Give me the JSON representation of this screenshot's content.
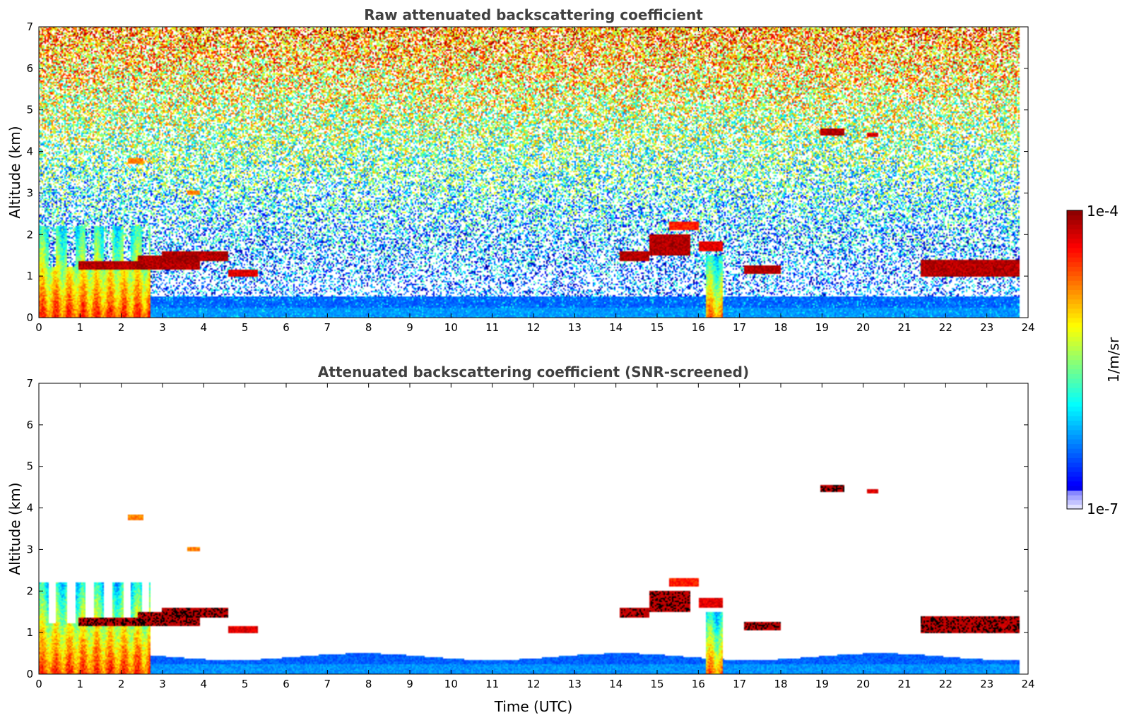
{
  "chart_data": [
    {
      "type": "heatmap",
      "title": "Raw attenuated backscattering coefficient",
      "xlabel": "",
      "ylabel": "Altitude (km)",
      "xlim": [
        0,
        24
      ],
      "ylim": [
        0,
        7
      ],
      "xticks": [
        "0",
        "1",
        "2",
        "3",
        "4",
        "5",
        "6",
        "7",
        "8",
        "9",
        "10",
        "11",
        "12",
        "13",
        "14",
        "15",
        "16",
        "17",
        "18",
        "19",
        "20",
        "21",
        "22",
        "23",
        "24"
      ],
      "yticks": [
        "0",
        "1",
        "2",
        "3",
        "4",
        "5",
        "6",
        "7"
      ],
      "noise": "high",
      "features": [
        {
          "kind": "aerosol-plume",
          "x": [
            0,
            2.7
          ],
          "y": [
            0,
            2.2
          ],
          "level": 0.8
        },
        {
          "kind": "cloud",
          "x": [
            0.95,
            2.6
          ],
          "y": [
            1.15,
            1.35
          ],
          "level": 0.95
        },
        {
          "kind": "cloud",
          "x": [
            2.4,
            3.9
          ],
          "y": [
            1.15,
            1.5
          ],
          "level": 0.95
        },
        {
          "kind": "cloud",
          "x": [
            3.0,
            4.6
          ],
          "y": [
            1.35,
            1.6
          ],
          "level": 0.95
        },
        {
          "kind": "cloud",
          "x": [
            4.6,
            5.3
          ],
          "y": [
            1.0,
            1.15
          ],
          "level": 0.9
        },
        {
          "kind": "cloud",
          "x": [
            2.15,
            2.55
          ],
          "y": [
            3.7,
            3.85
          ],
          "level": 0.75
        },
        {
          "kind": "cloud",
          "x": [
            3.6,
            3.9
          ],
          "y": [
            2.95,
            3.05
          ],
          "level": 0.75
        },
        {
          "kind": "cloud",
          "x": [
            14.1,
            14.8
          ],
          "y": [
            1.35,
            1.6
          ],
          "level": 0.95
        },
        {
          "kind": "cloud",
          "x": [
            14.8,
            15.8
          ],
          "y": [
            1.5,
            2.0
          ],
          "level": 0.95
        },
        {
          "kind": "cloud",
          "x": [
            15.3,
            16.0
          ],
          "y": [
            2.1,
            2.3
          ],
          "level": 0.85
        },
        {
          "kind": "cloud",
          "x": [
            16.0,
            16.6
          ],
          "y": [
            1.6,
            1.85
          ],
          "level": 0.9
        },
        {
          "kind": "cloud",
          "x": [
            17.1,
            18.0
          ],
          "y": [
            1.05,
            1.25
          ],
          "level": 0.95
        },
        {
          "kind": "cloud",
          "x": [
            18.95,
            19.55
          ],
          "y": [
            4.4,
            4.55
          ],
          "level": 0.95
        },
        {
          "kind": "cloud",
          "x": [
            20.1,
            20.35
          ],
          "y": [
            4.35,
            4.45
          ],
          "level": 0.9
        },
        {
          "kind": "cloud",
          "x": [
            21.4,
            23.8
          ],
          "y": [
            1.0,
            1.4
          ],
          "level": 0.95
        },
        {
          "kind": "plume",
          "x": [
            16.2,
            16.6
          ],
          "y": [
            0,
            1.5
          ],
          "level": 0.75
        },
        {
          "kind": "boundary-layer",
          "x": [
            2.7,
            23.8
          ],
          "y": [
            0,
            0.5
          ],
          "level": 0.25
        }
      ]
    },
    {
      "type": "heatmap",
      "title": "Attenuated backscattering coefficient (SNR-screened)",
      "xlabel": "Time (UTC)",
      "ylabel": "Altitude (km)",
      "xlim": [
        0,
        24
      ],
      "ylim": [
        0,
        7
      ],
      "xticks": [
        "0",
        "1",
        "2",
        "3",
        "4",
        "5",
        "6",
        "7",
        "8",
        "9",
        "10",
        "11",
        "12",
        "13",
        "14",
        "15",
        "16",
        "17",
        "18",
        "19",
        "20",
        "21",
        "22",
        "23",
        "24"
      ],
      "yticks": [
        "0",
        "1",
        "2",
        "3",
        "4",
        "5",
        "6",
        "7"
      ],
      "noise": "screened",
      "features": [
        {
          "kind": "aerosol-plume",
          "x": [
            0,
            2.7
          ],
          "y": [
            0,
            2.2
          ],
          "level": 0.8
        },
        {
          "kind": "cloud",
          "x": [
            0.95,
            2.6
          ],
          "y": [
            1.15,
            1.35
          ],
          "level": 0.95
        },
        {
          "kind": "cloud",
          "x": [
            2.4,
            3.9
          ],
          "y": [
            1.15,
            1.5
          ],
          "level": 0.95
        },
        {
          "kind": "cloud",
          "x": [
            3.0,
            4.6
          ],
          "y": [
            1.35,
            1.6
          ],
          "level": 0.95
        },
        {
          "kind": "cloud",
          "x": [
            4.6,
            5.3
          ],
          "y": [
            1.0,
            1.15
          ],
          "level": 0.9
        },
        {
          "kind": "cloud",
          "x": [
            2.15,
            2.55
          ],
          "y": [
            3.7,
            3.85
          ],
          "level": 0.75
        },
        {
          "kind": "cloud",
          "x": [
            3.6,
            3.9
          ],
          "y": [
            2.95,
            3.05
          ],
          "level": 0.75
        },
        {
          "kind": "cloud",
          "x": [
            14.1,
            14.8
          ],
          "y": [
            1.35,
            1.6
          ],
          "level": 0.95
        },
        {
          "kind": "cloud",
          "x": [
            14.8,
            15.8
          ],
          "y": [
            1.5,
            2.0
          ],
          "level": 0.95
        },
        {
          "kind": "cloud",
          "x": [
            15.3,
            16.0
          ],
          "y": [
            2.1,
            2.3
          ],
          "level": 0.85
        },
        {
          "kind": "cloud",
          "x": [
            16.0,
            16.6
          ],
          "y": [
            1.6,
            1.85
          ],
          "level": 0.9
        },
        {
          "kind": "cloud",
          "x": [
            17.1,
            18.0
          ],
          "y": [
            1.05,
            1.25
          ],
          "level": 0.95
        },
        {
          "kind": "cloud",
          "x": [
            18.95,
            19.55
          ],
          "y": [
            4.4,
            4.55
          ],
          "level": 0.95
        },
        {
          "kind": "cloud",
          "x": [
            20.1,
            20.35
          ],
          "y": [
            4.35,
            4.45
          ],
          "level": 0.9
        },
        {
          "kind": "cloud",
          "x": [
            21.4,
            23.8
          ],
          "y": [
            1.0,
            1.4
          ],
          "level": 0.95
        },
        {
          "kind": "plume",
          "x": [
            16.2,
            16.6
          ],
          "y": [
            0,
            1.5
          ],
          "level": 0.75
        },
        {
          "kind": "boundary-layer",
          "x": [
            2.7,
            23.8
          ],
          "y": [
            0,
            0.5
          ],
          "level": 0.25
        }
      ]
    }
  ],
  "colorbar": {
    "colormap": "jet",
    "max_label": "1e-4",
    "min_label": "1e-7",
    "label": "1/m/sr"
  }
}
